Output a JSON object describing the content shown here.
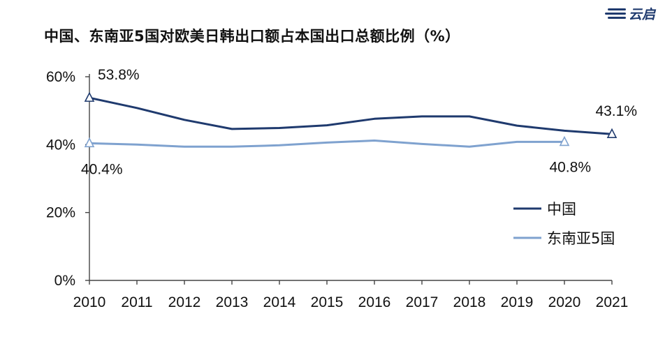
{
  "chart_data": {
    "type": "line",
    "title": "中国、东南亚5国对欧美日韩出口额占本国出口总额比例（%）",
    "x": [
      "2010",
      "2011",
      "2012",
      "2013",
      "2014",
      "2015",
      "2016",
      "2017",
      "2018",
      "2019",
      "2020",
      "2021"
    ],
    "ylim": [
      0,
      60
    ],
    "yticks": [
      0,
      20,
      40,
      60
    ],
    "ytick_format": "%",
    "grid": false,
    "legend": "bottom-right",
    "series": [
      {
        "name": "中国",
        "color": "#1f3a6e",
        "values": [
          53.8,
          50.8,
          47.3,
          44.6,
          44.9,
          45.7,
          47.6,
          48.3,
          48.3,
          45.6,
          44.1,
          43.1
        ],
        "labels": [
          {
            "index": 0,
            "text": "53.8%"
          },
          {
            "index": 11,
            "text": "43.1%"
          }
        ]
      },
      {
        "name": "东南亚5国",
        "color": "#7fa2cf",
        "values": [
          40.4,
          40.0,
          39.4,
          39.4,
          39.8,
          40.6,
          41.2,
          40.2,
          39.4,
          40.8,
          40.8,
          null
        ],
        "labels": [
          {
            "index": 0,
            "text": "40.4%"
          },
          {
            "index": 10,
            "text": "40.8%"
          }
        ]
      }
    ]
  },
  "logo": {
    "text": "云启",
    "color": "#1f3a6e"
  }
}
